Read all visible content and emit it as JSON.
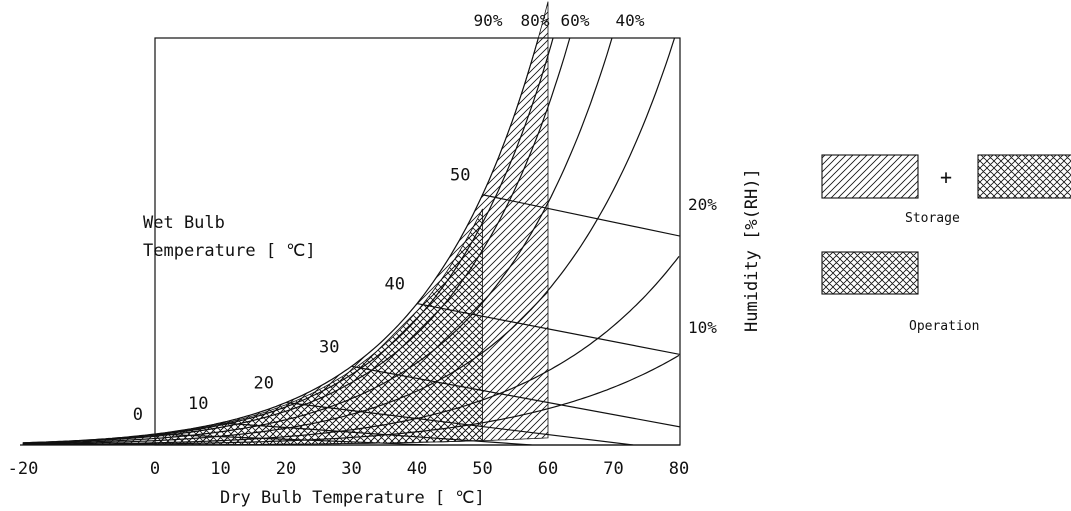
{
  "chart_data": {
    "type": "psychrometric",
    "xlabel": "Dry Bulb Temperature [ ℃]",
    "ylabel": "Humidity [%(RH)]",
    "wet_bulb_title_line1": "Wet Bulb",
    "wet_bulb_title_line2": "Temperature [ ℃]",
    "x_ticks": [
      "-20",
      "0",
      "10",
      "20",
      "30",
      "40",
      "50",
      "60",
      "70",
      "80"
    ],
    "x_tick_values": [
      -20,
      0,
      10,
      20,
      30,
      40,
      50,
      60,
      70,
      80
    ],
    "xlim": [
      -20,
      80
    ],
    "rh_curves": [
      {
        "value": 100,
        "label": ""
      },
      {
        "value": 90,
        "label": "90%"
      },
      {
        "value": 80,
        "label": "80%"
      },
      {
        "value": 60,
        "label": "60%"
      },
      {
        "value": 40,
        "label": "40%"
      },
      {
        "value": 20,
        "label": "20%"
      },
      {
        "value": 10,
        "label": "10%"
      }
    ],
    "wet_bulb_lines": [
      {
        "value": 0,
        "label": "0"
      },
      {
        "value": 10,
        "label": "10"
      },
      {
        "value": 20,
        "label": "20"
      },
      {
        "value": 30,
        "label": "30"
      },
      {
        "value": 40,
        "label": "40"
      },
      {
        "value": 50,
        "label": "50"
      }
    ],
    "regions": [
      {
        "name": "Storage",
        "pattern": "diagonal hatch",
        "combined_with": "Operation"
      },
      {
        "name": "Operation",
        "pattern": "cross hatch"
      }
    ],
    "legend": {
      "plus_sign": "+",
      "storage_label": "Storage",
      "operation_label": "Operation"
    }
  }
}
